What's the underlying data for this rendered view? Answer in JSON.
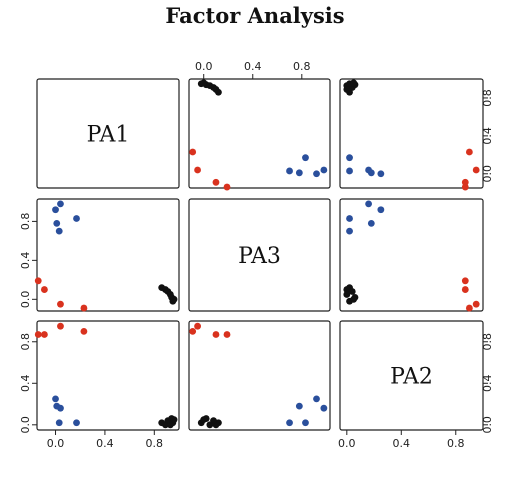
{
  "title": "Factor Analysis",
  "colors": {
    "black": "#111111",
    "red": "#d9321e",
    "blue": "#2a4f9c"
  },
  "chart_data": {
    "type": "scatter",
    "title": "Factor Analysis",
    "variables": [
      "PA1",
      "PA3",
      "PA2"
    ],
    "axis_ranges": {
      "PA1": [
        -0.15,
        1.0
      ],
      "PA3": [
        -0.12,
        1.03
      ],
      "PA2": [
        -0.05,
        1.0
      ]
    },
    "tick_values": [
      0.0,
      0.4,
      0.8
    ],
    "tick_labels": [
      "0.0",
      "0.4",
      "0.8"
    ],
    "groups": [
      {
        "color": "black",
        "PA1": [
          0.86,
          0.89,
          0.91,
          0.93,
          0.94,
          0.95,
          0.96
        ],
        "PA3": [
          0.12,
          0.1,
          0.08,
          0.05,
          0.02,
          -0.02,
          0.0
        ],
        "PA2": [
          0.02,
          0.0,
          0.04,
          0.0,
          0.06,
          0.02,
          0.05
        ]
      },
      {
        "color": "red",
        "PA1": [
          -0.14,
          -0.09,
          0.04,
          0.23
        ],
        "PA3": [
          0.19,
          0.1,
          -0.05,
          -0.09
        ],
        "PA2": [
          0.87,
          0.87,
          0.95,
          0.9
        ]
      },
      {
        "color": "blue",
        "PA1": [
          0.0,
          0.01,
          0.03,
          0.04,
          0.17
        ],
        "PA3": [
          0.92,
          0.78,
          0.7,
          0.98,
          0.83
        ],
        "PA2": [
          0.25,
          0.18,
          0.02,
          0.16,
          0.02
        ]
      }
    ],
    "grid": false,
    "legend": "none"
  }
}
